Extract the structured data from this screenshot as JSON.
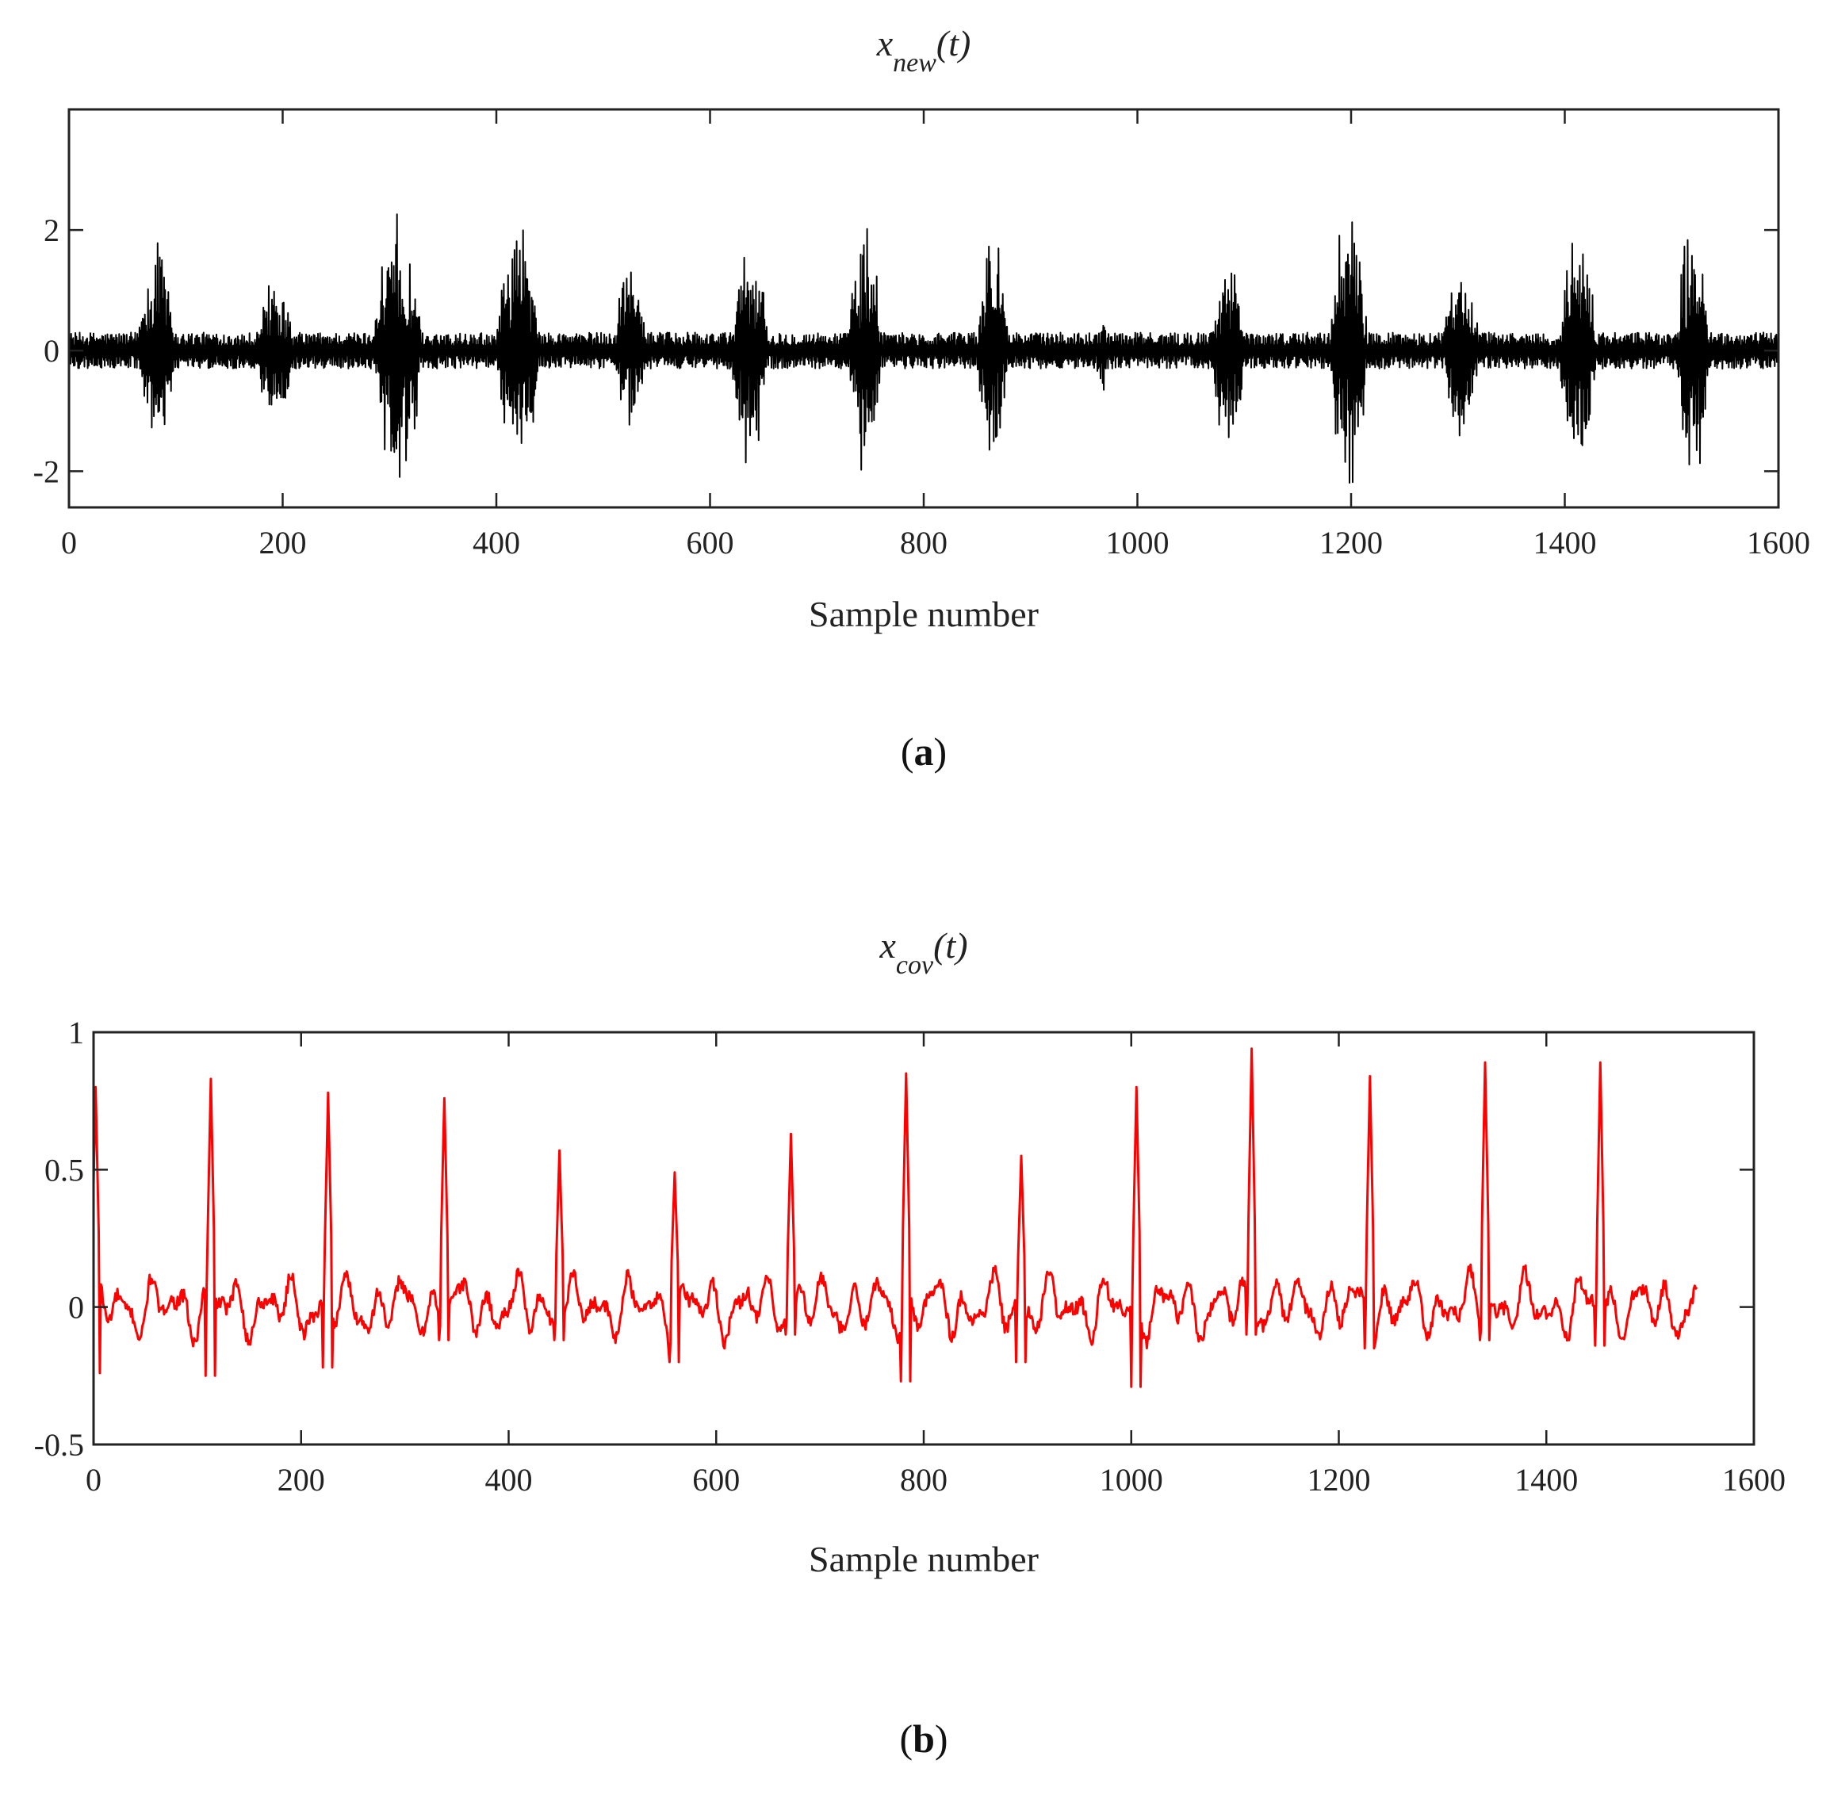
{
  "colors": {
    "series_a": "#000000",
    "series_b": "#ff0000",
    "frame": "#222222"
  },
  "chart_data": [
    {
      "type": "line",
      "title": {
        "main": "x",
        "sub": "new",
        "suffix": "(t)"
      },
      "xlabel": "Sample number",
      "ylabel": "",
      "xlim": [
        0,
        1600
      ],
      "ylim": [
        -2.6,
        4
      ],
      "xticks": [
        0,
        200,
        400,
        600,
        800,
        1000,
        1200,
        1400,
        1600
      ],
      "xtick_labels": [
        "0",
        "200",
        "400",
        "600",
        "800",
        "1000",
        "1200",
        "1400",
        "1600"
      ],
      "yticks": [
        -2,
        0,
        2
      ],
      "ytick_labels": [
        "-2",
        "0",
        "2"
      ],
      "grid": false,
      "panel_label": {
        "open": "(",
        "letter": "a",
        "close": ")"
      },
      "series": [
        {
          "color": "#000000",
          "baseline_noise": 0.3,
          "bursts": [
            {
              "start": 65,
              "end": 100,
              "amp": 2.0
            },
            {
              "start": 175,
              "end": 210,
              "amp": 1.3
            },
            {
              "start": 285,
              "end": 330,
              "amp": 2.3
            },
            {
              "start": 400,
              "end": 440,
              "amp": 2.4
            },
            {
              "start": 510,
              "end": 540,
              "amp": 1.5
            },
            {
              "start": 620,
              "end": 655,
              "amp": 2.1
            },
            {
              "start": 730,
              "end": 760,
              "amp": 2.3
            },
            {
              "start": 850,
              "end": 880,
              "amp": 2.2
            },
            {
              "start": 960,
              "end": 975,
              "amp": 0.8
            },
            {
              "start": 1070,
              "end": 1100,
              "amp": 1.9
            },
            {
              "start": 1180,
              "end": 1215,
              "amp": 2.8
            },
            {
              "start": 1285,
              "end": 1320,
              "amp": 1.6
            },
            {
              "start": 1395,
              "end": 1430,
              "amp": 2.1
            },
            {
              "start": 1505,
              "end": 1535,
              "amp": 2.4
            }
          ]
        }
      ]
    },
    {
      "type": "line",
      "title": {
        "main": "x",
        "sub": "cov",
        "suffix": "(t)"
      },
      "xlabel": "Sample number",
      "ylabel": "",
      "xlim": [
        0,
        1600
      ],
      "ylim": [
        -0.5,
        1
      ],
      "xticks": [
        0,
        200,
        400,
        600,
        800,
        1000,
        1200,
        1400,
        1600
      ],
      "xtick_labels": [
        "0",
        "200",
        "400",
        "600",
        "800",
        "1000",
        "1200",
        "1400",
        "1600"
      ],
      "yticks": [
        -0.5,
        0,
        0.5,
        1
      ],
      "ytick_labels": [
        "-0.5",
        "0",
        "0.5",
        "1"
      ],
      "grid": false,
      "panel_label": {
        "open": "(",
        "letter": "b",
        "close": ")"
      },
      "series": [
        {
          "color": "#ff0000",
          "x_end": 1545,
          "baseline_amp": 0.12,
          "peaks": [
            {
              "x": 2,
              "y": 0.8,
              "min": -0.24
            },
            {
              "x": 113,
              "y": 0.83,
              "min": -0.25
            },
            {
              "x": 226,
              "y": 0.78,
              "min": -0.22
            },
            {
              "x": 338,
              "y": 0.76,
              "min": -0.12
            },
            {
              "x": 449,
              "y": 0.57,
              "min": -0.12
            },
            {
              "x": 560,
              "y": 0.49,
              "min": -0.2
            },
            {
              "x": 672,
              "y": 0.63,
              "min": -0.1
            },
            {
              "x": 783,
              "y": 0.85,
              "min": -0.27
            },
            {
              "x": 894,
              "y": 0.55,
              "min": -0.2
            },
            {
              "x": 1005,
              "y": 0.8,
              "min": -0.29
            },
            {
              "x": 1116,
              "y": 0.94,
              "min": -0.1
            },
            {
              "x": 1230,
              "y": 0.84,
              "min": -0.15
            },
            {
              "x": 1341,
              "y": 0.89,
              "min": -0.12
            },
            {
              "x": 1452,
              "y": 0.89,
              "min": -0.14
            }
          ]
        }
      ]
    }
  ]
}
